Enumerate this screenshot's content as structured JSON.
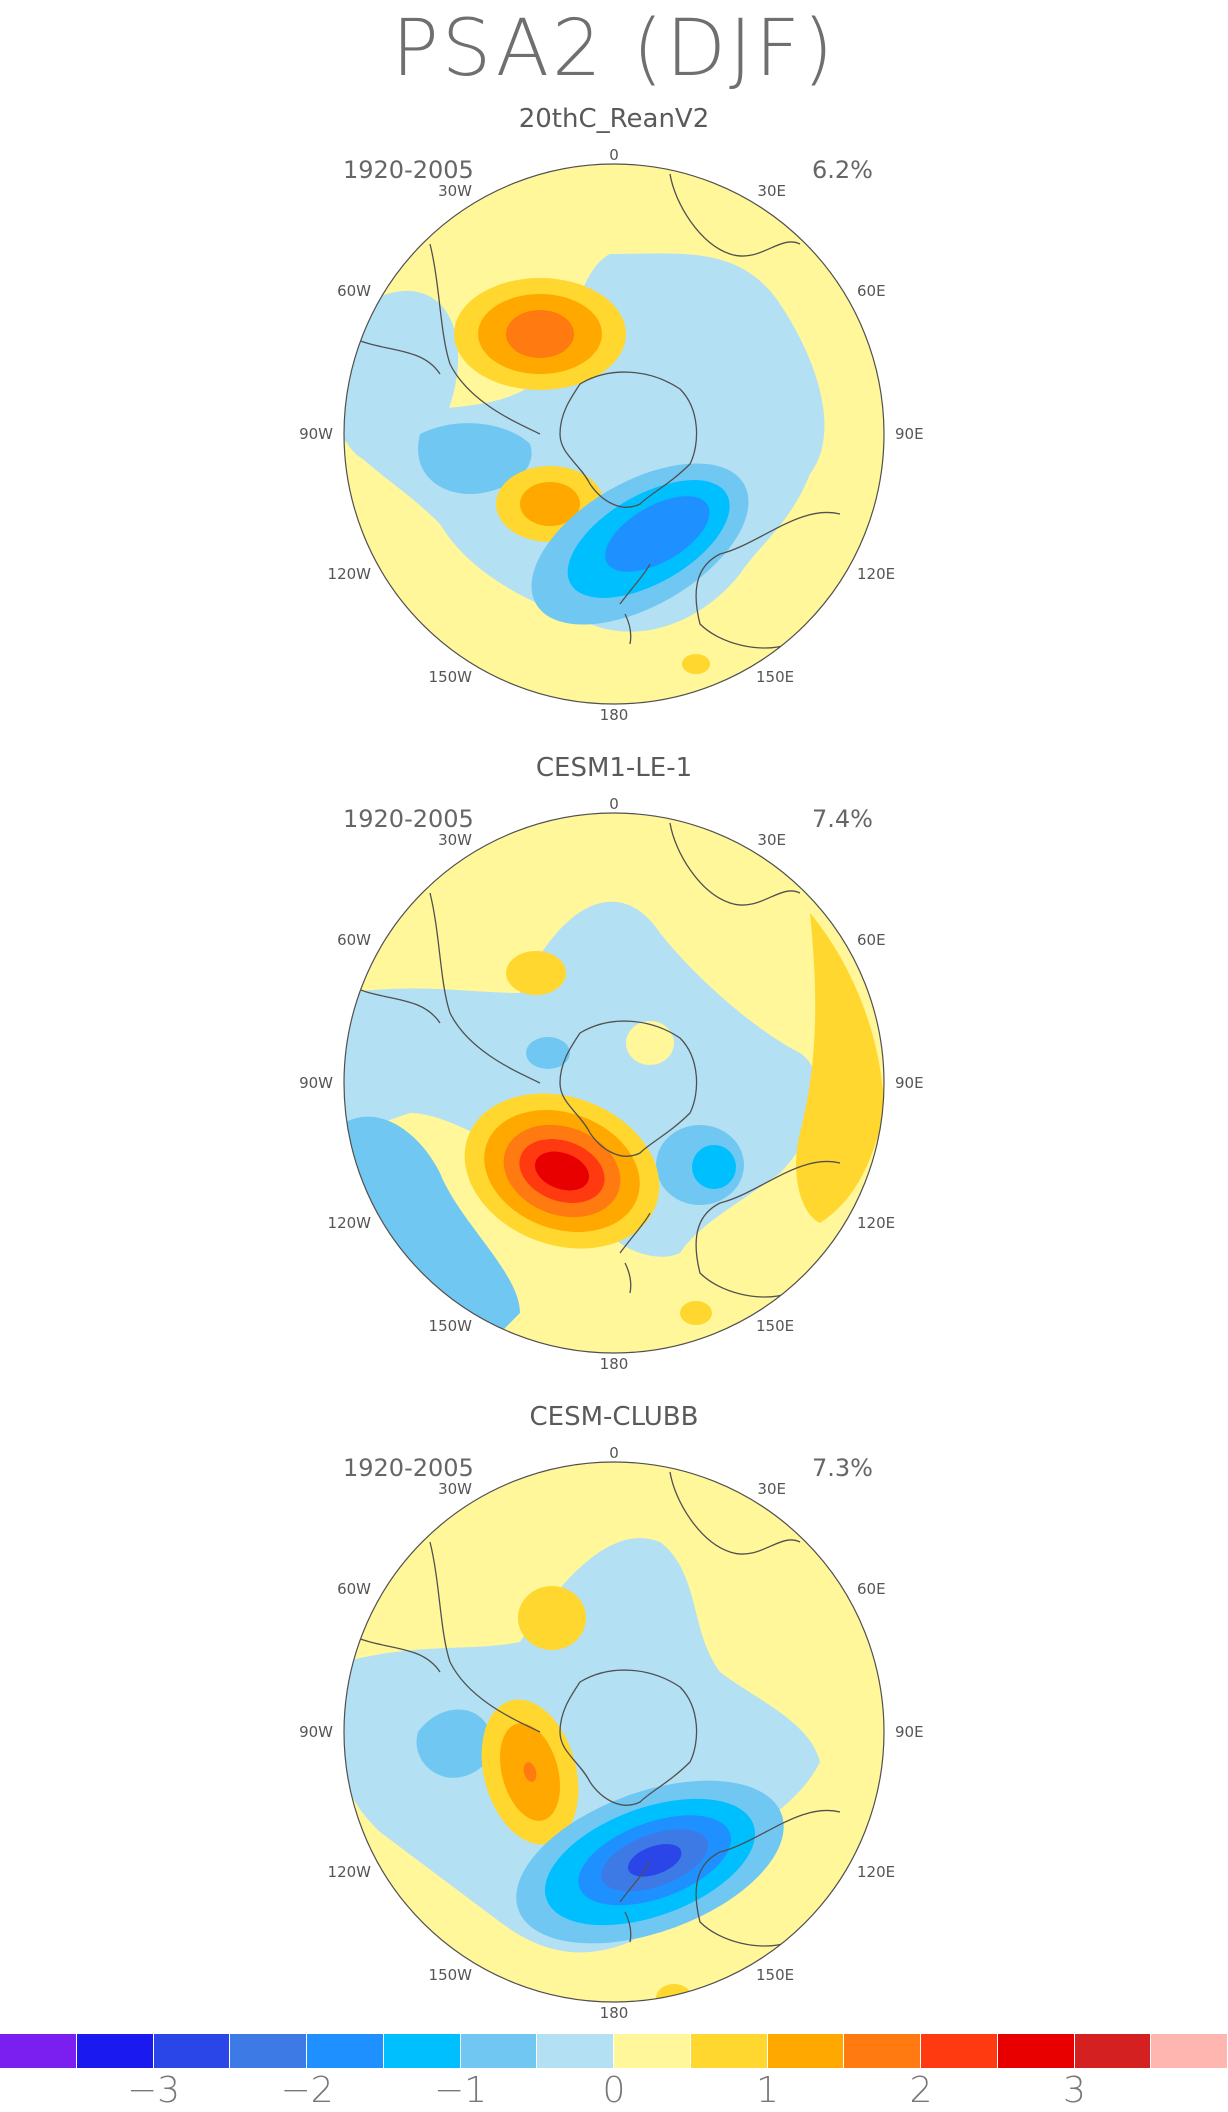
{
  "title": "PSA2 (DJF)",
  "colors": {
    "c_m4": "#7a1ff0",
    "c_m3": "#1a1af0",
    "c_m2_5": "#2a46e8",
    "c_m2": "#3d7ae6",
    "c_m1_5": "#1e90ff",
    "c_m1": "#00bfff",
    "c_m0_5": "#70c8f2",
    "c_m0": "#b4e0f4",
    "c_p0": "#fff79a",
    "c_p0_5": "#ffd72e",
    "c_p1": "#ffa800",
    "c_p1_5": "#ff7a10",
    "c_p2": "#ff3a10",
    "c_p2_5": "#e80000",
    "c_p3": "#d42020",
    "c_p4": "#ffb6b0",
    "coast": "#505050"
  },
  "panels": [
    {
      "name": "20thC_ReanV2",
      "period": "1920-2005",
      "variance": "6.2%",
      "lon_labels": [
        "0",
        "30E",
        "60E",
        "90E",
        "120E",
        "150E",
        "180",
        "150W",
        "120W",
        "90W",
        "60W",
        "30W"
      ]
    },
    {
      "name": "CESM1-LE-1",
      "period": "1920-2005",
      "variance": "7.4%",
      "lon_labels": [
        "0",
        "30E",
        "60E",
        "90E",
        "120E",
        "150E",
        "180",
        "150W",
        "120W",
        "90W",
        "60W",
        "30W"
      ]
    },
    {
      "name": "CESM-CLUBB",
      "period": "1920-2005",
      "variance": "7.3%",
      "lon_labels": [
        "0",
        "30E",
        "60E",
        "90E",
        "120E",
        "150E",
        "180",
        "150W",
        "120W",
        "90W",
        "60W",
        "30W"
      ]
    }
  ],
  "colorbar": {
    "ticks": [
      "−3",
      "−2",
      "−1",
      "0",
      "1",
      "2",
      "3"
    ],
    "tick_values": [
      -3,
      -2,
      -1,
      0,
      1,
      2,
      3
    ],
    "levels": [
      -4,
      -3.5,
      -3,
      -2.5,
      -2,
      -1.5,
      -1,
      -0.5,
      0,
      0.5,
      1,
      1.5,
      2,
      2.5,
      3,
      3.5,
      4
    ],
    "colors": [
      "#7a1ff0",
      "#1a1af0",
      "#2a46e8",
      "#3d7ae6",
      "#1e90ff",
      "#00bfff",
      "#70c8f2",
      "#b4e0f4",
      "#fff79a",
      "#ffd72e",
      "#ffa800",
      "#ff7a10",
      "#ff3a10",
      "#e80000",
      "#d42020",
      "#ffb6b0"
    ]
  }
}
